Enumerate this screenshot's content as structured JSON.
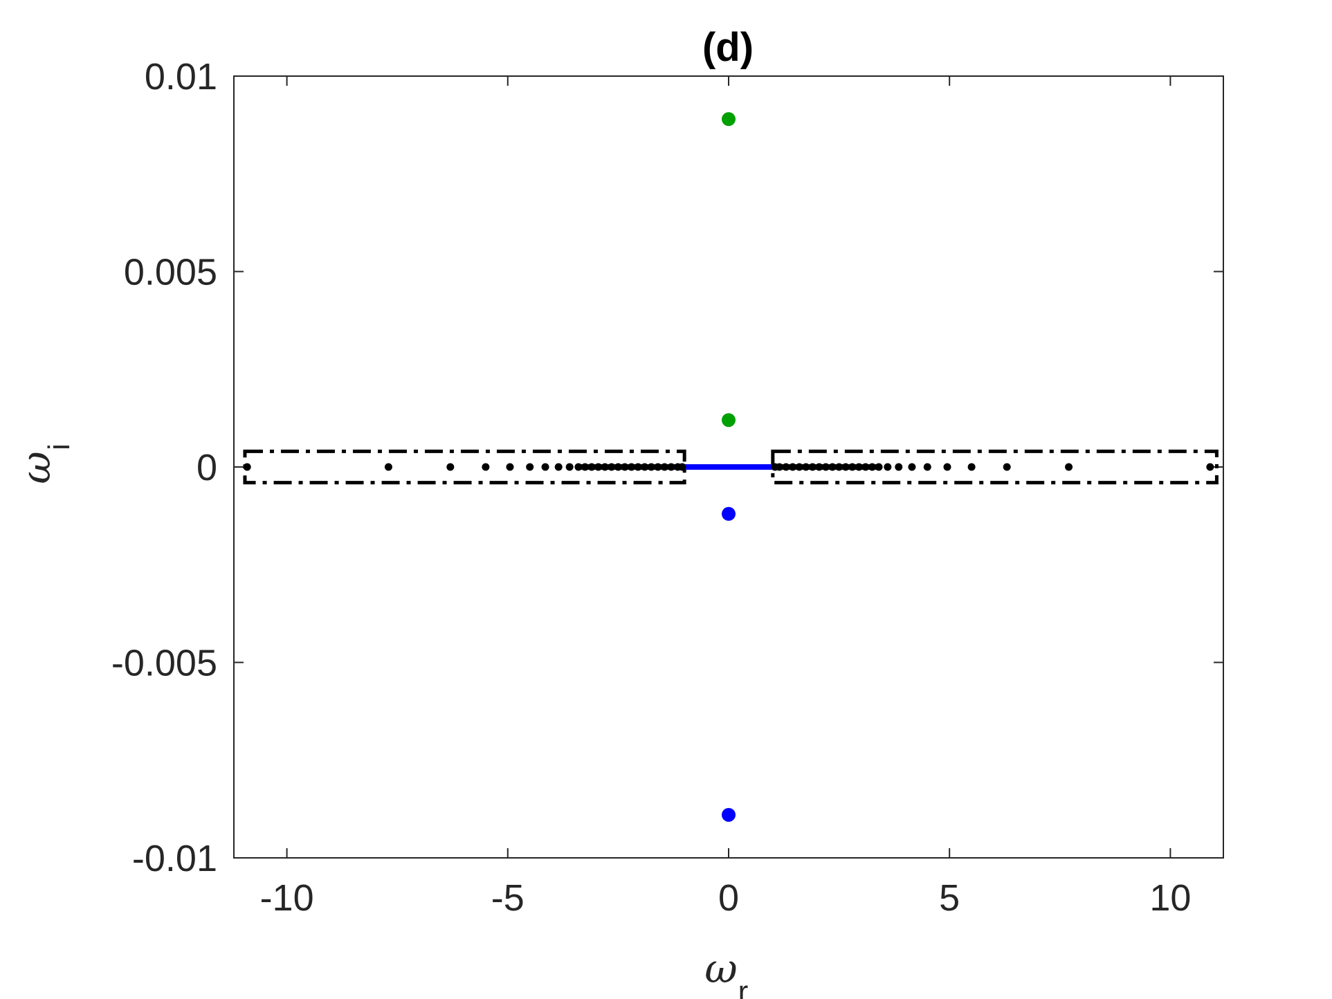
{
  "chart_data": {
    "type": "scatter",
    "title": "(d)",
    "xlabel": {
      "symbol": "ω",
      "subscript": "r"
    },
    "ylabel": {
      "symbol": "ω",
      "subscript": "i"
    },
    "xlim": [
      -11.2,
      11.2
    ],
    "ylim": [
      -0.01,
      0.01
    ],
    "xticks": [
      -10,
      -5,
      0,
      5,
      10
    ],
    "xtick_labels": [
      "-10",
      "-5",
      "0",
      "5",
      "10"
    ],
    "yticks": [
      -0.01,
      -0.005,
      0,
      0.005,
      0.01
    ],
    "ytick_labels": [
      "-0.01",
      "-0.005",
      "0",
      "0.005",
      "0.01"
    ],
    "grid": false,
    "legend": "none",
    "series": [
      {
        "color": "#00a000",
        "marker": "filled-circle-large",
        "points": [
          [
            0,
            0.0089
          ],
          [
            0,
            0.0012
          ]
        ]
      },
      {
        "color": "#0000ff",
        "marker": "filled-circle-large",
        "points": [
          [
            0,
            -0.0012
          ],
          [
            0,
            -0.0089
          ]
        ]
      },
      {
        "color": "#000000",
        "marker": "dot-small",
        "x": [
          -10.9,
          -7.7,
          -6.3,
          -5.5,
          -4.95,
          -4.5,
          -4.15,
          -3.85,
          -3.6,
          -3.4,
          -3.25,
          -3.1,
          -2.95,
          -2.8,
          -2.65,
          -2.5,
          -2.35,
          -2.2,
          -2.05,
          -1.9,
          -1.75,
          -1.6,
          -1.45,
          -1.3,
          -1.15,
          -1.05,
          1.05,
          1.15,
          1.3,
          1.45,
          1.6,
          1.75,
          1.9,
          2.05,
          2.2,
          2.35,
          2.5,
          2.65,
          2.8,
          2.95,
          3.1,
          3.25,
          3.4,
          3.6,
          3.85,
          4.15,
          4.5,
          4.95,
          5.5,
          6.3,
          7.7,
          10.9
        ],
        "y_value": 0
      }
    ],
    "continuum_segments": [
      {
        "color": "#0000ff",
        "x_range": [
          -1,
          1
        ],
        "y": 0
      },
      {
        "color": "#000000",
        "x_range": [
          -3.4,
          -1
        ],
        "y": 0
      },
      {
        "color": "#000000",
        "x_range": [
          1,
          3.4
        ],
        "y": 0
      }
    ],
    "dashdot_boxes": [
      {
        "x_range": [
          -10.95,
          -1
        ],
        "y_range": [
          -0.0004,
          0.0004
        ]
      },
      {
        "x_range": [
          1,
          11.05
        ],
        "y_range": [
          -0.0004,
          0.0004
        ]
      }
    ]
  }
}
